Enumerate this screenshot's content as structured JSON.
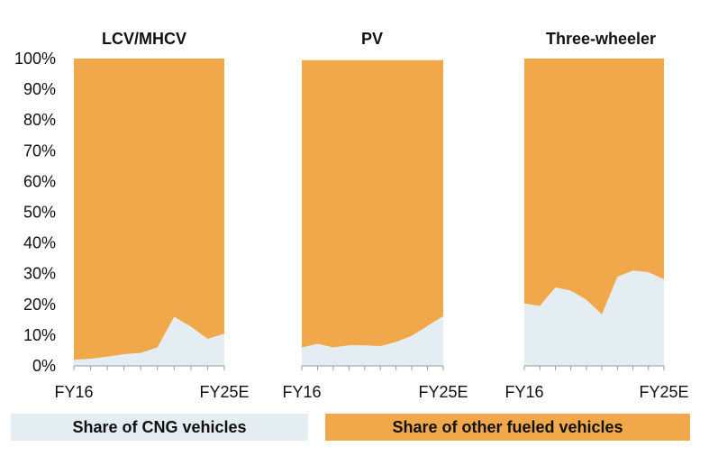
{
  "chart_data": {
    "type": "area",
    "stacked": true,
    "normalized": true,
    "y_tick_labels": [
      "0%",
      "10%",
      "20%",
      "30%",
      "40%",
      "50%",
      "60%",
      "70%",
      "80%",
      "90%",
      "100%"
    ],
    "ylim": [
      0,
      100
    ],
    "legend": [
      {
        "name": "Share of CNG vehicles",
        "color": "#e3edf2"
      },
      {
        "name": "Share of other fueled vehicles",
        "color": "#f0a84a"
      }
    ],
    "legend_position": "bottom",
    "grid": false,
    "panels": [
      {
        "title": "LCV/MHCV",
        "x_first_label": "FY16",
        "x_last_label": "FY25E",
        "series": [
          {
            "name": "Share of CNG vehicles",
            "values": [
              2,
              2.3,
              3,
              3.8,
              4.2,
              6,
              16,
              12.8,
              8.8,
              10.5
            ]
          },
          {
            "name": "Share of other fueled vehicles",
            "values": [
              98,
              97.7,
              97,
              96.2,
              95.8,
              94,
              84,
              87.2,
              91.2,
              89.5
            ]
          }
        ]
      },
      {
        "title": "PV",
        "x_first_label": "FY16",
        "x_last_label": "FY25E",
        "series": [
          {
            "name": "Share of CNG vehicles",
            "values": [
              6,
              7.2,
              6,
              6.7,
              6.7,
              6.4,
              7.8,
              9.8,
              13,
              16.2
            ]
          },
          {
            "name": "Share of other fueled vehicles",
            "values": [
              93.5,
              92.3,
              93.5,
              92.8,
              92.8,
              93.1,
              91.7,
              89.7,
              86.5,
              83.3
            ]
          }
        ]
      },
      {
        "title": "Three-wheeler",
        "x_first_label": "FY16",
        "x_last_label": "FY25E",
        "series": [
          {
            "name": "Share of CNG vehicles",
            "values": [
              20.3,
              19.5,
              25.5,
              24.5,
              21.5,
              16.8,
              29,
              31,
              30.5,
              28.2
            ]
          },
          {
            "name": "Share of other fueled vehicles",
            "values": [
              79.7,
              80.5,
              74.5,
              75.5,
              78.5,
              83.2,
              71,
              69,
              69.5,
              71.8
            ]
          }
        ]
      }
    ]
  }
}
